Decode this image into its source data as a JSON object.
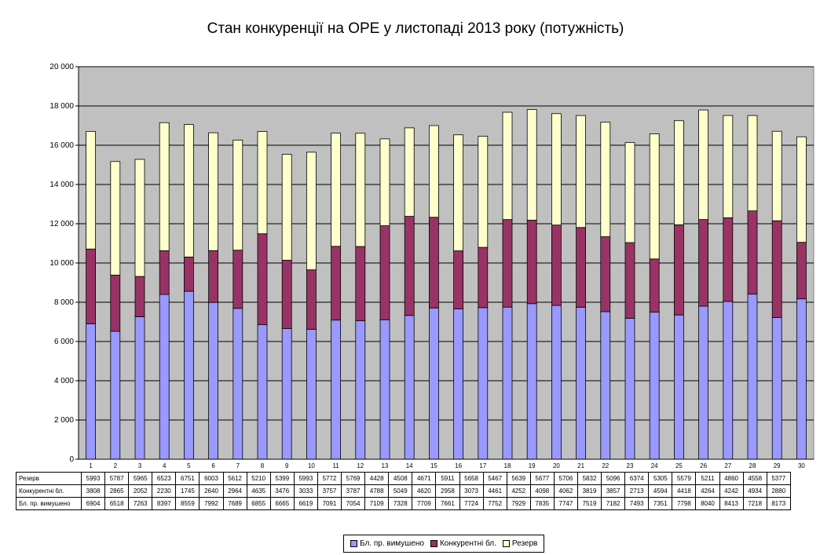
{
  "chart_data": {
    "type": "bar",
    "stacked": true,
    "title": "Стан конкуренції на ОРЕ  у листопаді 2013 року (потужність)",
    "categories": [
      "1",
      "2",
      "3",
      "4",
      "5",
      "6",
      "7",
      "8",
      "9",
      "10",
      "11",
      "12",
      "13",
      "14",
      "15",
      "16",
      "17",
      "18",
      "19",
      "20",
      "21",
      "22",
      "23",
      "24",
      "25",
      "26",
      "27",
      "28",
      "29",
      "30"
    ],
    "ylim": [
      0,
      20000
    ],
    "yticks": [
      "0",
      "2 000",
      "4 000",
      "6 000",
      "8 000",
      "10 000",
      "12 000",
      "14 000",
      "16 000",
      "18 000",
      "20 000"
    ],
    "grid": true,
    "legend_position": "bottom",
    "series": [
      {
        "name": "Бл. пр. вимушено",
        "color": "#9999ff",
        "values": [
          6904,
          6518,
          7263,
          8397,
          8559,
          7992,
          7689,
          6855,
          6665,
          6619,
          7091,
          7054,
          7109,
          7328,
          7709,
          7661,
          7724,
          7752,
          7929,
          7835,
          7747,
          7519,
          7182,
          7493,
          7351,
          7798,
          8040,
          8413,
          7218,
          8173
        ]
      },
      {
        "name": "Конкурентні бл.",
        "color": "#993366",
        "values": [
          3808,
          2865,
          2052,
          2230,
          1745,
          2640,
          2964,
          4635,
          3476,
          3033,
          3757,
          3787,
          4788,
          5049,
          4620,
          2958,
          3073,
          4461,
          4252,
          4098,
          4062,
          3819,
          3857,
          2713,
          4594,
          4418,
          4264,
          4242,
          4934,
          2880
        ]
      },
      {
        "name": "Резерв",
        "color": "#ffffcc",
        "values": [
          5993,
          5787,
          5965,
          6523,
          6751,
          6003,
          5612,
          5210,
          5399,
          5993,
          5772,
          5769,
          4428,
          4508,
          4671,
          5911,
          5658,
          5467,
          5639,
          5677,
          5706,
          5832,
          5096,
          6374,
          5305,
          5579,
          5211,
          4860,
          4558,
          5377
        ]
      }
    ],
    "table_rows_order": [
      2,
      1,
      0
    ],
    "colors": {
      "plot_area": "#c0c0c0",
      "gridline": "#000000"
    }
  }
}
